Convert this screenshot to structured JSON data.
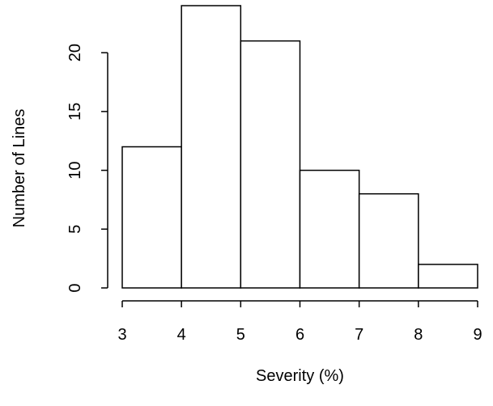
{
  "chart_data": {
    "type": "bar",
    "subtype": "histogram",
    "bins": [
      {
        "x0": 3,
        "x1": 4,
        "count": 12
      },
      {
        "x0": 4,
        "x1": 5,
        "count": 24
      },
      {
        "x0": 5,
        "x1": 6,
        "count": 21
      },
      {
        "x0": 6,
        "x1": 7,
        "count": 10
      },
      {
        "x0": 7,
        "x1": 8,
        "count": 8
      },
      {
        "x0": 8,
        "x1": 9,
        "count": 2
      }
    ],
    "xlabel": "Severity (%)",
    "ylabel": "Number of Lines",
    "xlim": [
      3,
      9
    ],
    "ylim": [
      0,
      24
    ],
    "x_ticks": [
      "3",
      "4",
      "5",
      "6",
      "7",
      "8",
      "9"
    ],
    "y_ticks": [
      "0",
      "5",
      "10",
      "15",
      "20"
    ],
    "grid": false,
    "legend": "none",
    "bar_fill": "#ffffff",
    "bar_stroke": "#000000"
  }
}
